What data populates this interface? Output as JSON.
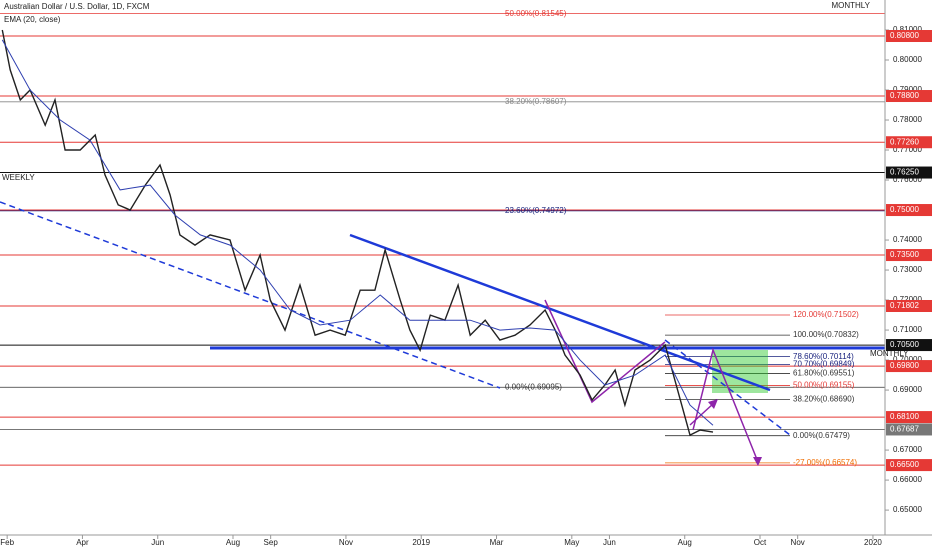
{
  "chart_data": {
    "type": "line",
    "title": "Australian Dollar / U.S. Dollar, 1D, FXCM",
    "texts": {
      "weekly": "WEEKLY",
      "monthly_top": "MONTHLY",
      "monthly_level": "MONTHLY"
    },
    "xlim": [
      0.81,
      24.32
    ],
    "xticks": [
      {
        "value": 1,
        "label": "Feb"
      },
      {
        "value": 3,
        "label": "Apr"
      },
      {
        "value": 5,
        "label": "Jun"
      },
      {
        "value": 7,
        "label": "Aug"
      },
      {
        "value": 8,
        "label": "Sep"
      },
      {
        "value": 10,
        "label": "Nov"
      },
      {
        "value": 12,
        "label": "2019"
      },
      {
        "value": 14,
        "label": "Mar"
      },
      {
        "value": 16,
        "label": "May"
      },
      {
        "value": 17,
        "label": "Jun"
      },
      {
        "value": 19,
        "label": "Aug"
      },
      {
        "value": 21,
        "label": "Oct"
      },
      {
        "value": 22,
        "label": "Nov"
      },
      {
        "value": 24,
        "label": "2020"
      }
    ],
    "ylim": [
      0.6367,
      0.82
    ],
    "yticks": [
      {
        "value": 0.81,
        "label": "0.81000"
      },
      {
        "value": 0.8,
        "label": "0.80000"
      },
      {
        "value": 0.79,
        "label": "0.79000"
      },
      {
        "value": 0.78,
        "label": "0.78000"
      },
      {
        "value": 0.77,
        "label": "0.77000"
      },
      {
        "value": 0.76,
        "label": "0.76000"
      },
      {
        "value": 0.74,
        "label": "0.74000"
      },
      {
        "value": 0.73,
        "label": "0.73000"
      },
      {
        "value": 0.72,
        "label": "0.72000"
      },
      {
        "value": 0.71,
        "label": "0.71000"
      },
      {
        "value": 0.7,
        "label": "0.70000"
      },
      {
        "value": 0.69,
        "label": "0.69000"
      },
      {
        "value": 0.67,
        "label": "0.67000"
      },
      {
        "value": 0.66,
        "label": "0.66000"
      },
      {
        "value": 0.65,
        "label": "0.65000"
      }
    ],
    "levels": [
      {
        "value": 0.808,
        "label": "0.80800",
        "color": "#e53935"
      },
      {
        "value": 0.788,
        "label": "0.78800",
        "color": "#e53935"
      },
      {
        "value": 0.7726,
        "label": "0.77260",
        "color": "#e53935"
      },
      {
        "value": 0.7625,
        "label": "0.76250",
        "color": "#111111"
      },
      {
        "value": 0.75,
        "label": "0.75000",
        "color": "#e53935"
      },
      {
        "value": 0.735,
        "label": "0.73500",
        "color": "#e53935"
      },
      {
        "value": 0.71802,
        "label": "0.71802",
        "color": "#e53935"
      },
      {
        "value": 0.705,
        "label": "0.70500",
        "color": "#111111"
      },
      {
        "value": 0.698,
        "label": "0.69800",
        "color": "#e53935"
      },
      {
        "value": 0.681,
        "label": "0.68100",
        "color": "#e53935"
      },
      {
        "value": 0.67687,
        "label": "0.67687",
        "color": "#777777"
      },
      {
        "value": 0.665,
        "label": "0.66500",
        "color": "#e53935"
      }
    ],
    "fib_left": [
      {
        "value": 0.81545,
        "label": "50.00%(0.81545)",
        "color": "#e53935"
      },
      {
        "value": 0.78607,
        "label": "38.20%(0.78607)",
        "color": "#888888"
      },
      {
        "value": 0.74972,
        "label": "23.60%(0.74972)",
        "color": "#1a237e"
      },
      {
        "value": 0.69095,
        "label": "0.00%(0.69095)",
        "color": "#333333"
      }
    ],
    "fib_right": [
      {
        "value": 0.71502,
        "label": "120.00%(0.71502)",
        "color": "#e53935"
      },
      {
        "value": 0.70832,
        "label": "100.00%(0.70832)",
        "color": "#333333"
      },
      {
        "value": 0.70114,
        "label": "78.60%(0.70114)",
        "color": "#1a237e"
      },
      {
        "value": 0.69849,
        "label": "70.70%(0.69849)",
        "color": "#1a237e"
      },
      {
        "value": 0.69551,
        "label": "61.80%(0.69551)",
        "color": "#333333"
      },
      {
        "value": 0.69155,
        "label": "50.00%(0.69155)",
        "color": "#e53935"
      },
      {
        "value": 0.6869,
        "label": "38.20%(0.68690)",
        "color": "#333333"
      },
      {
        "value": 0.67479,
        "label": "0.00%(0.67479)",
        "color": "#333333"
      },
      {
        "value": 0.66574,
        "label": "-27.00%(0.66574)",
        "color": "#ef6c00"
      }
    ],
    "series": [
      {
        "color": "#222222",
        "x": [
          0.87,
          1.08,
          1.35,
          1.61,
          2.01,
          2.27,
          2.54,
          2.94,
          3.34,
          3.6,
          3.95,
          4.27,
          4.67,
          5.06,
          5.33,
          5.59,
          5.99,
          6.39,
          6.92,
          7.32,
          7.72,
          7.99,
          8.38,
          8.78,
          9.18,
          9.58,
          9.98,
          10.38,
          10.77,
          11.04,
          11.44,
          11.7,
          11.97,
          12.24,
          12.63,
          12.98,
          13.3,
          13.7,
          14.09,
          14.49,
          14.89,
          15.29,
          15.56,
          15.82,
          16.22,
          16.54,
          16.88,
          17.15,
          17.41,
          17.68,
          18.08,
          18.48,
          18.74,
          19.14,
          19.41,
          19.75
        ],
        "values": [
          0.81,
          0.7967,
          0.7867,
          0.79,
          0.7783,
          0.7867,
          0.77,
          0.77,
          0.775,
          0.7617,
          0.7517,
          0.75,
          0.7583,
          0.765,
          0.755,
          0.7417,
          0.7383,
          0.7417,
          0.74,
          0.7233,
          0.735,
          0.72,
          0.71,
          0.725,
          0.7083,
          0.71,
          0.7083,
          0.7233,
          0.7233,
          0.7367,
          0.72,
          0.71,
          0.7033,
          0.715,
          0.7133,
          0.725,
          0.7083,
          0.7133,
          0.7067,
          0.7083,
          0.7117,
          0.7167,
          0.71,
          0.7017,
          0.695,
          0.6867,
          0.6917,
          0.6967,
          0.685,
          0.6967,
          0.7,
          0.705,
          0.6933,
          0.675,
          0.6767,
          0.676
        ]
      },
      {
        "name": "EMA (20, close)",
        "color": "#2e3fb0",
        "x": [
          0.87,
          1.61,
          2.41,
          3.2,
          4.0,
          4.8,
          5.46,
          6.13,
          6.92,
          7.72,
          8.52,
          9.31,
          10.11,
          10.91,
          11.7,
          12.5,
          13.3,
          14.09,
          14.89,
          15.56,
          16.22,
          16.88,
          17.68,
          18.48,
          19.14,
          19.75
        ],
        "values": [
          0.8067,
          0.79,
          0.78,
          0.7733,
          0.7567,
          0.7583,
          0.7483,
          0.7417,
          0.7383,
          0.73,
          0.7167,
          0.7117,
          0.7133,
          0.7217,
          0.7133,
          0.7133,
          0.7133,
          0.71,
          0.7107,
          0.71,
          0.7,
          0.6917,
          0.695,
          0.7017,
          0.685,
          0.6783
        ]
      }
    ]
  }
}
